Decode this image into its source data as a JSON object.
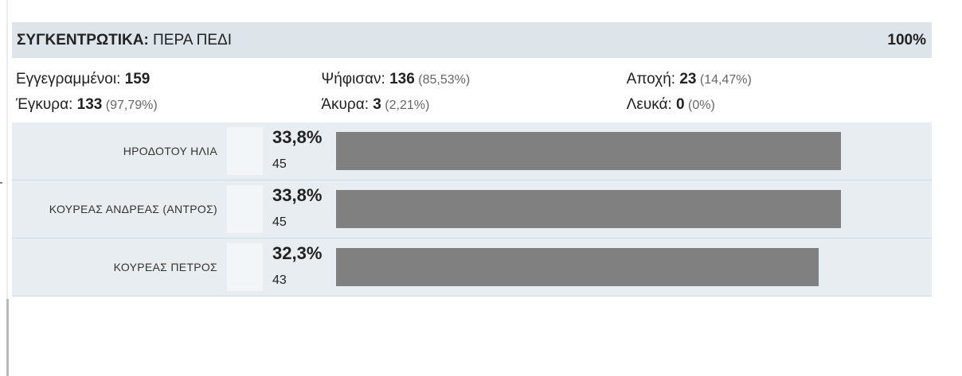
{
  "header": {
    "title_bold": "ΣΥΓΚΕΝΤΡΩΤΙΚΑ:",
    "title_rest": " ΠΕΡΑ ΠΕΔΙ",
    "progress": "100%"
  },
  "summary": {
    "registered_label": "Εγγεγραμμένοι: ",
    "registered_value": "159",
    "voted_label": "Ψήφισαν: ",
    "voted_value": "136",
    "voted_pct": " (85,53%)",
    "abstention_label": "Αποχή: ",
    "abstention_value": "23",
    "abstention_pct": " (14,47%)",
    "valid_label": "Έγκυρα: ",
    "valid_value": "133",
    "valid_pct": " (97,79%)",
    "invalid_label": "Άκυρα: ",
    "invalid_value": "3",
    "invalid_pct": " (2,21%)",
    "blank_label": "Λευκά: ",
    "blank_value": "0",
    "blank_pct": " (0%)"
  },
  "candidates": [
    {
      "name": "ΗΡΟΔΟΤΟΥ ΗΛΙΑ",
      "percent": "33,8%",
      "votes": "45",
      "share": 33.8
    },
    {
      "name": "ΚΟΥΡΕΑΣ ΑΝΔΡΕΑΣ (ΑΝΤΡΟΣ)",
      "percent": "33,8%",
      "votes": "45",
      "share": 33.8
    },
    {
      "name": "ΚΟΥΡΕΑΣ ΠΕΤΡΟΣ",
      "percent": "32,3%",
      "votes": "43",
      "share": 32.3
    }
  ],
  "colors": {
    "header_bg": "#dde5ea",
    "row_bg": "#e7edf1",
    "bar": "#808080"
  }
}
